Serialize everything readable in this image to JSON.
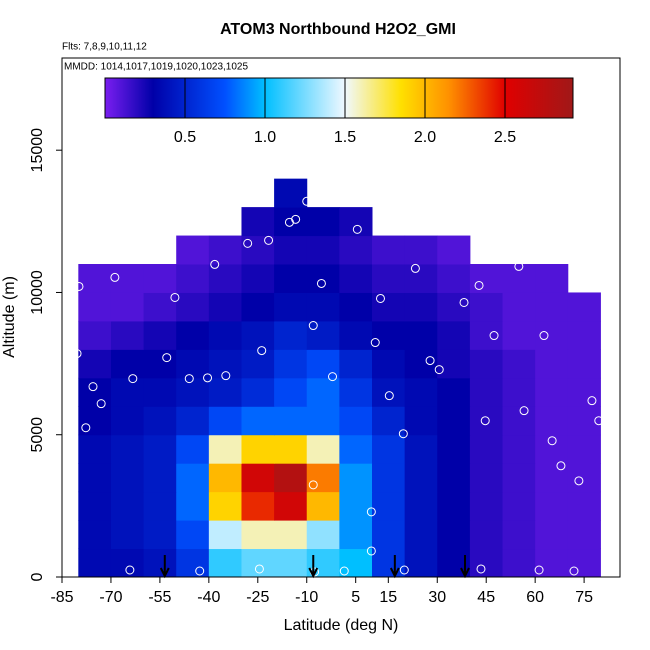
{
  "chart_data": {
    "type": "heatmap",
    "title": "ATOM3 Northbound H2O2_GMI",
    "subtitle": "Flts: 7,8,9,10,11,12",
    "annotation": "MMDD: 1014,1017,1019,1020,1023,1025",
    "x_label": "Latitude (deg N)",
    "y_label": "Altitude (m)",
    "xlim": [
      -85,
      86
    ],
    "ylim": [
      0,
      18240
    ],
    "xticks": [
      -85,
      -70,
      -55,
      -40,
      -25,
      -10,
      5,
      15,
      30,
      45,
      60,
      75
    ],
    "yticks": [
      0,
      5000,
      10000,
      15000
    ],
    "x_edges": [
      -80,
      -70,
      -60,
      -50,
      -40,
      -30,
      -20,
      -10,
      0,
      10,
      20,
      30,
      40,
      50,
      60,
      70,
      80
    ],
    "y_edges": [
      0,
      1000,
      2000,
      3000,
      4000,
      5000,
      6000,
      7000,
      8000,
      9000,
      10000,
      11000,
      12000,
      13000,
      14000
    ],
    "z": [
      [
        0.35,
        0.35,
        0.4,
        0.6,
        1.1,
        1.2,
        1.2,
        1.1,
        1.0,
        0.6,
        0.4,
        0.3,
        0.2,
        0.15,
        0.1,
        0.1
      ],
      [
        0.35,
        0.4,
        0.45,
        0.7,
        1.4,
        1.6,
        1.6,
        1.3,
        0.9,
        0.6,
        0.4,
        0.3,
        0.2,
        0.15,
        0.1,
        0.1
      ],
      [
        0.35,
        0.4,
        0.45,
        0.8,
        1.9,
        2.4,
        2.6,
        2.0,
        0.9,
        0.6,
        0.4,
        0.3,
        0.2,
        0.15,
        0.1,
        0.1
      ],
      [
        0.35,
        0.4,
        0.45,
        0.8,
        2.0,
        2.6,
        2.8,
        2.2,
        0.9,
        0.6,
        0.4,
        0.3,
        0.2,
        0.15,
        0.1,
        0.1
      ],
      [
        0.35,
        0.4,
        0.45,
        0.7,
        1.6,
        1.9,
        1.9,
        1.6,
        0.8,
        0.6,
        0.4,
        0.3,
        0.2,
        0.15,
        0.1,
        0.1
      ],
      [
        0.3,
        0.35,
        0.4,
        0.5,
        0.7,
        0.8,
        0.8,
        0.8,
        0.7,
        0.5,
        0.35,
        0.3,
        0.2,
        0.15,
        0.1,
        0.1
      ],
      [
        0.3,
        0.35,
        0.35,
        0.4,
        0.45,
        0.55,
        0.7,
        0.8,
        0.6,
        0.4,
        0.35,
        0.3,
        0.2,
        0.15,
        0.1,
        0.1
      ],
      [
        0.25,
        0.3,
        0.3,
        0.35,
        0.4,
        0.45,
        0.6,
        0.7,
        0.5,
        0.35,
        0.3,
        0.25,
        0.2,
        0.15,
        0.1,
        0.1
      ],
      [
        0.15,
        0.2,
        0.25,
        0.3,
        0.35,
        0.4,
        0.5,
        0.45,
        0.35,
        0.3,
        0.3,
        0.25,
        0.15,
        0.1,
        0.1,
        0.1
      ],
      [
        0.1,
        0.1,
        0.15,
        0.2,
        0.25,
        0.3,
        0.35,
        0.35,
        0.3,
        0.25,
        0.25,
        0.2,
        0.15,
        0.1,
        0.1,
        0.1
      ],
      [
        0.1,
        0.1,
        0.1,
        0.15,
        0.2,
        0.25,
        0.3,
        0.3,
        0.25,
        0.2,
        0.2,
        0.15,
        0.1,
        0.1,
        0.1,
        null
      ],
      [
        null,
        null,
        null,
        0.1,
        0.15,
        0.2,
        0.25,
        0.25,
        0.2,
        0.15,
        0.15,
        0.1,
        null,
        null,
        null,
        null
      ],
      [
        null,
        null,
        null,
        null,
        null,
        0.25,
        0.3,
        0.3,
        0.25,
        null,
        null,
        null,
        null,
        null,
        null,
        null
      ],
      [
        null,
        null,
        null,
        null,
        null,
        null,
        0.35,
        null,
        null,
        null,
        null,
        null,
        null,
        null,
        null,
        null
      ]
    ],
    "zlim": [
      0,
      2.925
    ],
    "zticks": [
      0.5,
      {
        "value": 1,
        "label": "1.0"
      },
      1.5,
      {
        "value": 2,
        "label": "2.0"
      },
      2.5
    ],
    "colorscale": [
      [
        0,
        "#7a1ef0"
      ],
      [
        0.3,
        "#0000a8"
      ],
      [
        0.75,
        "#0050ff"
      ],
      [
        1.0,
        "#00bfff"
      ],
      [
        1.5,
        "#f0f8ff"
      ],
      [
        1.85,
        "#ffe000"
      ],
      [
        2.15,
        "#ff9000"
      ],
      [
        2.5,
        "#e00000"
      ],
      [
        2.925,
        "#a01818"
      ]
    ],
    "points": {
      "color": "#ffffff",
      "x": [
        -79.8,
        -80.4,
        -75.5,
        -73,
        -77.7,
        -68.8,
        -63.3,
        -57.5,
        -52.9,
        -50.4,
        -46,
        -40.4,
        -38.2,
        -34.8,
        -28.1,
        -23.8,
        -21.7,
        -15.3,
        -13.4,
        -10,
        -8,
        -5.5,
        -2.1,
        5.5,
        11,
        12.6,
        13.8,
        9.8,
        9.8,
        15.3,
        19.6,
        23.3,
        27.8,
        30.6,
        37.6,
        38.2,
        42.8,
        44.7,
        47.4,
        53.5,
        55,
        56.6,
        62.7,
        65.2,
        67.9,
        73.4,
        77.4,
        79.5,
        -64.2,
        -42.8,
        -24.5,
        -7.6,
        1.5,
        19.9,
        43.4,
        61.2,
        71.9,
        -8
      ],
      "y": [
        10211,
        7852,
        6690,
        6092,
        5246,
        10528,
        6972,
        11796,
        7711,
        9824,
        6972,
        7000,
        10985,
        7077,
        11725,
        7958,
        11831,
        12465,
        12570,
        13204,
        8838,
        10317,
        7042,
        12218,
        8240,
        9789,
        12641,
        2289,
        915,
        6373,
        5035,
        10845,
        7606,
        7289,
        12254,
        9648,
        10246,
        5493,
        8486,
        11831,
        10915,
        5845,
        8486,
        4789,
        3908,
        3380,
        6197,
        5493,
        246,
        211,
        282,
        176,
        211,
        246,
        282,
        246,
        211,
        3239
      ]
    },
    "arrows": {
      "color": "#000000",
      "x": [
        -53.5,
        -8,
        17,
        38.5
      ]
    }
  }
}
